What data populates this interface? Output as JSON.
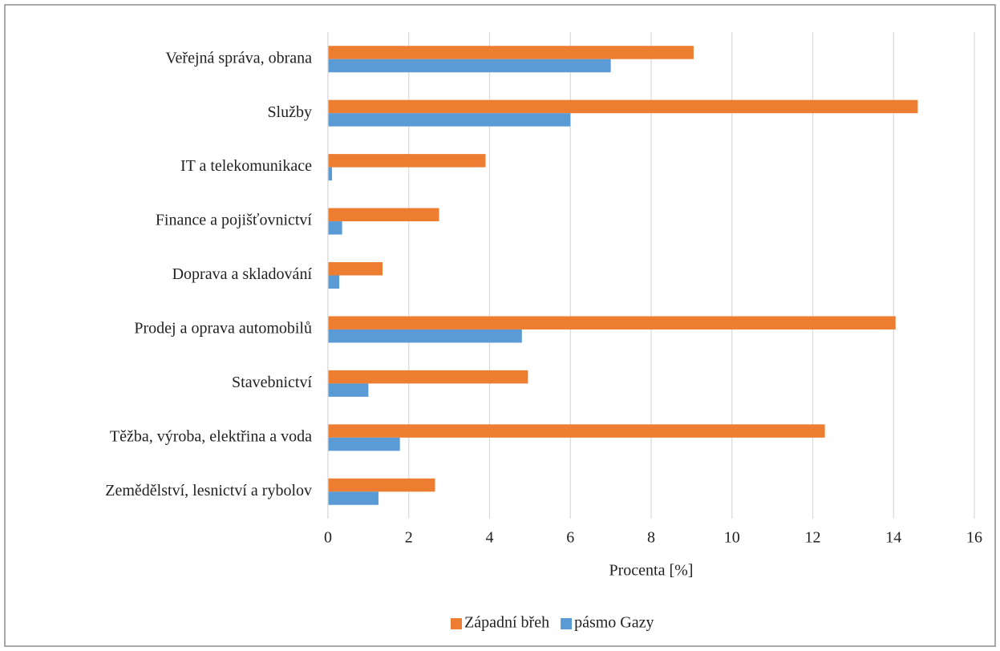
{
  "chart_data": {
    "type": "hbar",
    "categories": [
      "Veřejná správa, obrana",
      "Služby",
      "IT a telekomunikace",
      "Finance a pojišťovnictví",
      "Doprava a skladování",
      "Prodej a oprava automobilů",
      "Stavebnictví",
      "Těžba, výroba, elektřina a voda",
      "Zemědělství, lesnictví a rybolov"
    ],
    "series": [
      {
        "name": "Západní břeh",
        "color": "#ed7d31",
        "values": [
          9.05,
          14.6,
          3.9,
          2.75,
          1.35,
          14.05,
          4.95,
          12.3,
          2.65
        ]
      },
      {
        "name": "pásmo Gazy",
        "color": "#5b9bd5",
        "values": [
          7.0,
          6.0,
          0.1,
          0.35,
          0.28,
          4.8,
          1.0,
          1.78,
          1.25
        ]
      }
    ],
    "xlabel": "Procenta [%]",
    "xlim": [
      0,
      16
    ],
    "xticks": [
      0,
      2,
      4,
      6,
      8,
      10,
      12,
      14,
      16
    ],
    "grid": true,
    "legend": "bottom"
  }
}
